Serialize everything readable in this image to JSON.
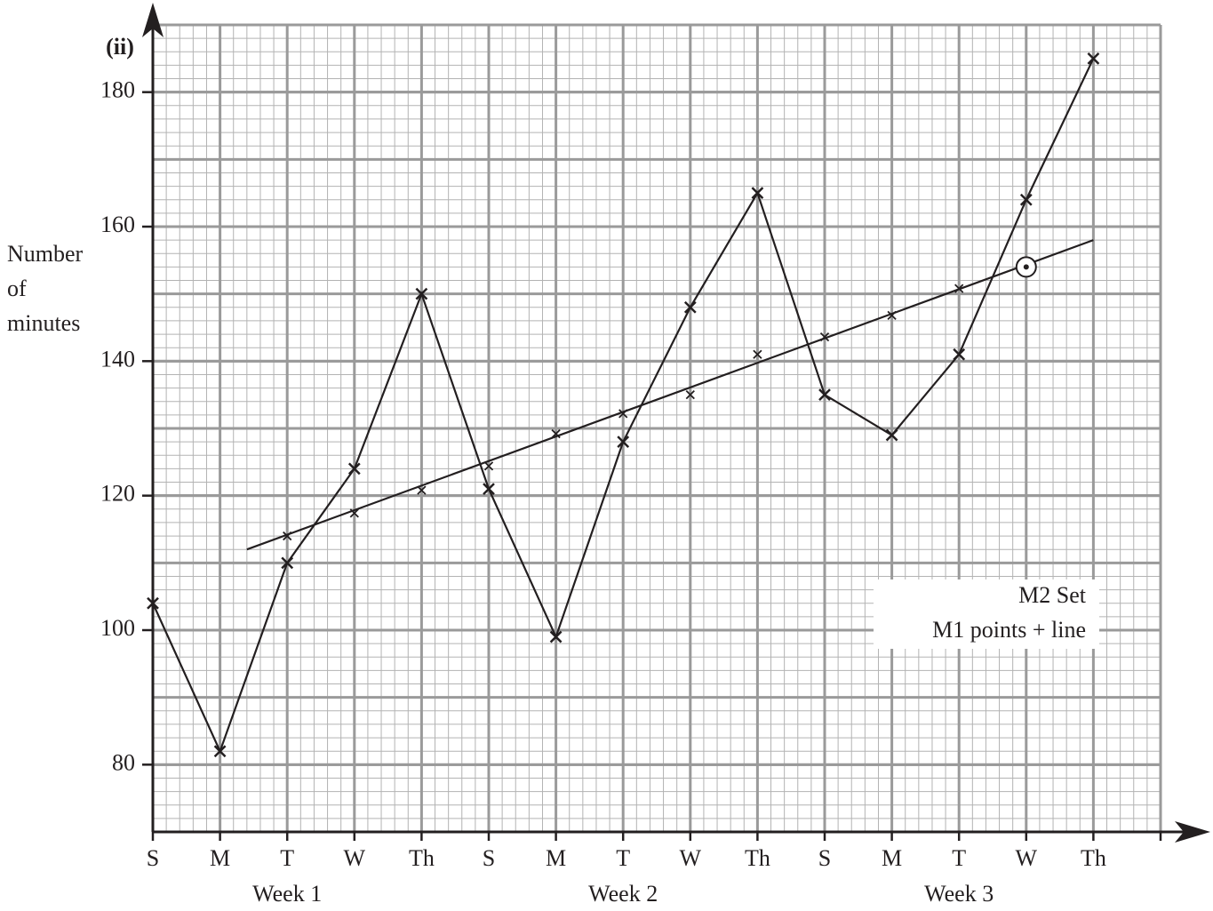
{
  "chart_data": {
    "type": "line",
    "part_label": "(ii)",
    "y_label": [
      "Number",
      "of",
      "minutes"
    ],
    "categories": [
      "S",
      "M",
      "T",
      "W",
      "Th",
      "S",
      "M",
      "T",
      "W",
      "Th",
      "S",
      "M",
      "T",
      "W",
      "Th"
    ],
    "groups": [
      {
        "label": "Week 1",
        "center": 2
      },
      {
        "label": "Week 2",
        "center": 7
      },
      {
        "label": "Week 3",
        "center": 12
      }
    ],
    "series": [
      {
        "color": "#231f20",
        "values": [
          104,
          82,
          110,
          124,
          150,
          121,
          99,
          128,
          148,
          165,
          135,
          129,
          141,
          164,
          185
        ]
      },
      {
        "color": "#231f20",
        "values": [
          null,
          null,
          114,
          117.4,
          120.8,
          124.4,
          129.2,
          132.2,
          135,
          141,
          143.6,
          146.8,
          150.8,
          null,
          null
        ]
      }
    ],
    "trend_line": {
      "x": [
        1.4,
        14
      ],
      "values": [
        112,
        158
      ]
    },
    "prediction": {
      "x": 13,
      "value": 154
    },
    "annotation": [
      "M2 Set",
      "M1 points + line"
    ],
    "xlim": [
      0,
      15
    ],
    "ylim": [
      70,
      190
    ],
    "yticks": [
      80,
      100,
      120,
      140,
      160,
      180
    ],
    "grid": true
  }
}
